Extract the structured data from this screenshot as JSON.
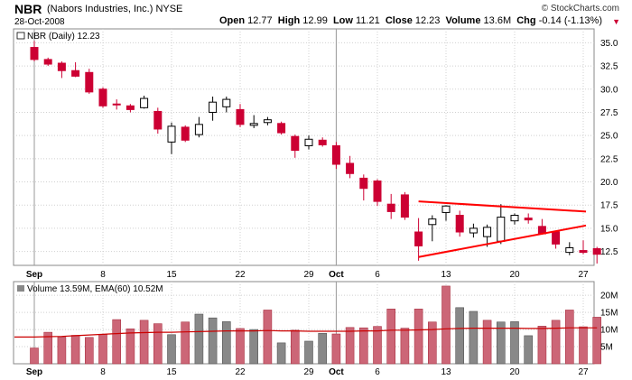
{
  "header": {
    "symbol": "NBR",
    "company": "(Nabors Industries, Inc.)",
    "exchange": "NYSE",
    "date": "28-Oct-2008",
    "open_label": "Open",
    "open": "12.77",
    "high_label": "High",
    "high": "12.99",
    "low_label": "Low",
    "low": "11.21",
    "close_label": "Close",
    "close": "12.23",
    "volume_label": "Volume",
    "volume": "13.6M",
    "chg_label": "Chg",
    "chg": "-0.14 (-1.13%)",
    "copyright": "© StockCharts.com",
    "chg_icon": "down-triangle-icon"
  },
  "colors": {
    "up": "#000000",
    "down": "#cc0033",
    "trendline": "#ff0000",
    "ema": "#cc0000",
    "vol_up": "#888888",
    "vol_down": "#cc6677",
    "grid": "#d0d0d0"
  },
  "chart_data": [
    {
      "type": "candlestick",
      "legend": "NBR (Daily) 12.23",
      "ylim": [
        11,
        36.5
      ],
      "y_ticks": [
        "35.0",
        "32.5",
        "30.0",
        "27.5",
        "25.0",
        "22.5",
        "20.0",
        "17.5",
        "15.0",
        "12.5"
      ],
      "x_tick_labels": [
        {
          "label": "Sep",
          "bold": true,
          "index": 0
        },
        {
          "label": "8",
          "bold": false,
          "index": 5
        },
        {
          "label": "15",
          "bold": false,
          "index": 10
        },
        {
          "label": "22",
          "bold": false,
          "index": 15
        },
        {
          "label": "29",
          "bold": false,
          "index": 20
        },
        {
          "label": "Oct",
          "bold": true,
          "index": 22
        },
        {
          "label": "6",
          "bold": false,
          "index": 25
        },
        {
          "label": "13",
          "bold": false,
          "index": 30
        },
        {
          "label": "20",
          "bold": false,
          "index": 35
        },
        {
          "label": "27",
          "bold": false,
          "index": 40
        }
      ],
      "candles": [
        {
          "o": 34.5,
          "h": 35.2,
          "l": 33.0,
          "c": 33.2
        },
        {
          "o": 33.2,
          "h": 33.4,
          "l": 32.5,
          "c": 32.7
        },
        {
          "o": 32.8,
          "h": 33.0,
          "l": 31.2,
          "c": 32.0
        },
        {
          "o": 32.0,
          "h": 32.9,
          "l": 31.3,
          "c": 31.4
        },
        {
          "o": 31.8,
          "h": 32.2,
          "l": 29.5,
          "c": 29.7
        },
        {
          "o": 30.0,
          "h": 30.2,
          "l": 28.0,
          "c": 28.2
        },
        {
          "o": 28.4,
          "h": 28.9,
          "l": 27.8,
          "c": 28.3
        },
        {
          "o": 28.2,
          "h": 28.4,
          "l": 27.5,
          "c": 27.8
        },
        {
          "o": 28.0,
          "h": 29.3,
          "l": 27.9,
          "c": 29.0
        },
        {
          "o": 27.6,
          "h": 28.0,
          "l": 25.2,
          "c": 25.7
        },
        {
          "o": 24.3,
          "h": 26.4,
          "l": 23.0,
          "c": 26.0
        },
        {
          "o": 25.9,
          "h": 26.1,
          "l": 24.3,
          "c": 24.5
        },
        {
          "o": 25.1,
          "h": 27.0,
          "l": 24.8,
          "c": 26.2
        },
        {
          "o": 27.5,
          "h": 29.2,
          "l": 26.6,
          "c": 28.6
        },
        {
          "o": 28.1,
          "h": 29.2,
          "l": 27.5,
          "c": 28.9
        },
        {
          "o": 27.8,
          "h": 28.4,
          "l": 25.9,
          "c": 26.2
        },
        {
          "o": 26.1,
          "h": 27.2,
          "l": 25.8,
          "c": 26.3
        },
        {
          "o": 26.4,
          "h": 27.0,
          "l": 26.1,
          "c": 26.7
        },
        {
          "o": 26.3,
          "h": 26.5,
          "l": 25.1,
          "c": 25.3
        },
        {
          "o": 24.9,
          "h": 25.1,
          "l": 22.6,
          "c": 23.4
        },
        {
          "o": 23.9,
          "h": 25.0,
          "l": 23.5,
          "c": 24.6
        },
        {
          "o": 24.5,
          "h": 24.8,
          "l": 23.8,
          "c": 24.0
        },
        {
          "o": 23.9,
          "h": 24.3,
          "l": 21.4,
          "c": 21.9
        },
        {
          "o": 22.0,
          "h": 22.8,
          "l": 20.4,
          "c": 20.9
        },
        {
          "o": 20.4,
          "h": 20.8,
          "l": 18.0,
          "c": 19.3
        },
        {
          "o": 20.1,
          "h": 20.3,
          "l": 17.4,
          "c": 17.9
        },
        {
          "o": 17.6,
          "h": 18.7,
          "l": 16.0,
          "c": 16.8
        },
        {
          "o": 18.6,
          "h": 18.9,
          "l": 15.9,
          "c": 16.2
        },
        {
          "o": 14.6,
          "h": 16.1,
          "l": 11.5,
          "c": 13.1
        },
        {
          "o": 15.4,
          "h": 16.4,
          "l": 13.6,
          "c": 16.0
        },
        {
          "o": 16.7,
          "h": 17.5,
          "l": 15.8,
          "c": 17.4
        },
        {
          "o": 16.4,
          "h": 16.9,
          "l": 14.1,
          "c": 14.6
        },
        {
          "o": 14.5,
          "h": 15.5,
          "l": 14.0,
          "c": 15.0
        },
        {
          "o": 14.1,
          "h": 15.4,
          "l": 13.0,
          "c": 15.1
        },
        {
          "o": 13.6,
          "h": 17.6,
          "l": 13.3,
          "c": 16.2
        },
        {
          "o": 15.8,
          "h": 16.6,
          "l": 15.4,
          "c": 16.4
        },
        {
          "o": 16.1,
          "h": 16.6,
          "l": 15.5,
          "c": 15.9
        },
        {
          "o": 15.2,
          "h": 16.0,
          "l": 14.3,
          "c": 14.4
        },
        {
          "o": 14.6,
          "h": 14.7,
          "l": 12.8,
          "c": 13.3
        },
        {
          "o": 12.4,
          "h": 13.5,
          "l": 12.1,
          "c": 12.9
        },
        {
          "o": 12.6,
          "h": 13.7,
          "l": 12.2,
          "c": 12.4
        },
        {
          "o": 12.8,
          "h": 13.0,
          "l": 11.2,
          "c": 12.2
        }
      ],
      "trendlines": [
        {
          "x1": 28.0,
          "y1": 17.9,
          "x2": 40.2,
          "y2": 16.8
        },
        {
          "x1": 28.0,
          "y1": 11.9,
          "x2": 40.2,
          "y2": 15.3
        }
      ]
    },
    {
      "type": "bar",
      "legend": "Volume 13.59M, EMA(60) 10.52M",
      "ylim": [
        0,
        24
      ],
      "y_ticks": [
        {
          "label": "20M",
          "value": 20
        },
        {
          "label": "15M",
          "value": 15
        },
        {
          "label": "10M",
          "value": 10
        },
        {
          "label": "5M",
          "value": 5
        }
      ],
      "values": [
        4.6,
        9.2,
        7.8,
        8.3,
        7.7,
        8.6,
        12.9,
        10.2,
        12.7,
        11.7,
        8.5,
        12.2,
        14.5,
        13.4,
        12.3,
        10.3,
        10.0,
        15.7,
        6.1,
        9.8,
        6.6,
        8.9,
        8.7,
        10.6,
        10.5,
        10.9,
        16.0,
        10.4,
        16.0,
        12.2,
        22.7,
        16.4,
        15.3,
        12.7,
        12.2,
        12.3,
        8.2,
        11.0,
        12.7,
        15.7,
        10.8,
        13.6
      ],
      "up": [
        false,
        false,
        false,
        false,
        false,
        false,
        false,
        false,
        false,
        false,
        true,
        false,
        true,
        true,
        true,
        false,
        true,
        false,
        true,
        false,
        true,
        true,
        false,
        false,
        false,
        false,
        false,
        false,
        false,
        false,
        false,
        true,
        true,
        false,
        true,
        true,
        true,
        false,
        false,
        false,
        false,
        false
      ],
      "ema": [
        7.8,
        7.9,
        8.0,
        8.2,
        8.4,
        8.6,
        8.8,
        9.0,
        9.1,
        9.2,
        9.2,
        9.3,
        9.4,
        9.5,
        9.6,
        9.6,
        9.6,
        9.7,
        9.6,
        9.6,
        9.5,
        9.5,
        9.5,
        9.5,
        9.6,
        9.6,
        9.8,
        9.8,
        9.9,
        10.0,
        10.2,
        10.3,
        10.4,
        10.4,
        10.4,
        10.4,
        10.3,
        10.3,
        10.4,
        10.5,
        10.5,
        10.5
      ]
    }
  ]
}
